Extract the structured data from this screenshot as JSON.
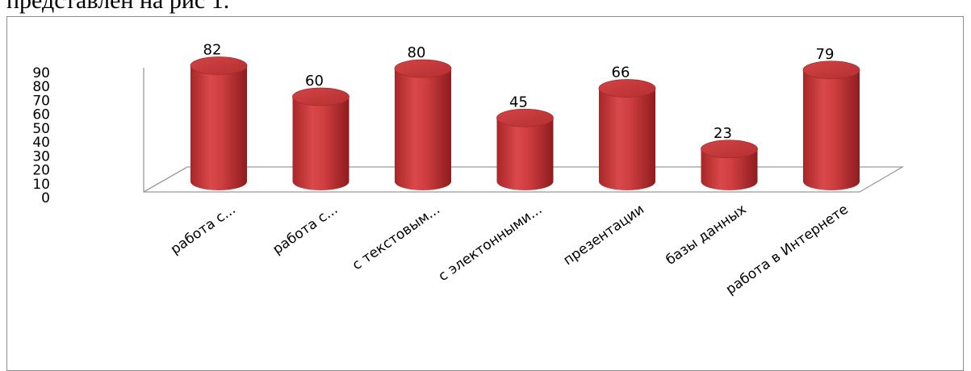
{
  "page": {
    "intro_text": "представлен на рис 1."
  },
  "chart_data": {
    "type": "bar",
    "style": "3d-cylinder",
    "color": "#c0393b",
    "title": "",
    "xlabel": "",
    "ylabel": "",
    "ylim": [
      0,
      90
    ],
    "yticks": [
      0,
      10,
      20,
      30,
      40,
      50,
      60,
      70,
      80,
      90
    ],
    "grid": false,
    "legend": "none",
    "categories": [
      "работа с...",
      "работа с...",
      "с текстовым...",
      "с электонными...",
      "презентации",
      "базы данных",
      "работа в Интернете"
    ],
    "values": [
      82,
      60,
      80,
      45,
      66,
      23,
      79
    ],
    "data_labels": [
      "82",
      "60",
      "80",
      "45",
      "66",
      "23",
      "79"
    ]
  }
}
